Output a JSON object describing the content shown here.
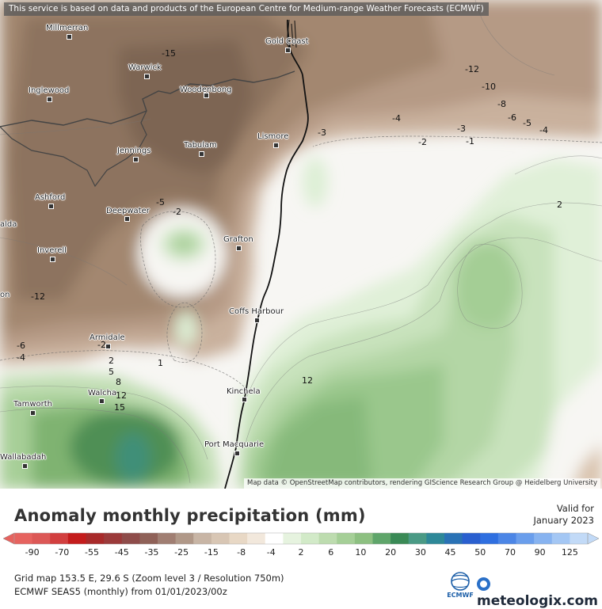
{
  "notice": "This service is based on data and products of the European Centre for Medium-range Weather Forecasts (ECMWF)",
  "attribution": "Map data © OpenStreetMap contributors, rendering GIScience Research Group @ Heidelberg University",
  "cities": [
    {
      "id": "millmerran",
      "name": "Millmerran"
    },
    {
      "id": "gold-coast",
      "name": "Gold Coast"
    },
    {
      "id": "warwick",
      "name": "Warwick"
    },
    {
      "id": "inglewood",
      "name": "Inglewood"
    },
    {
      "id": "woodenbong",
      "name": "Woodenbong"
    },
    {
      "id": "lismore",
      "name": "Lismore"
    },
    {
      "id": "tabulam",
      "name": "Tabulam"
    },
    {
      "id": "jennings",
      "name": "Jennings"
    },
    {
      "id": "ashford",
      "name": "Ashford"
    },
    {
      "id": "deepwater",
      "name": "Deepwater"
    },
    {
      "id": "grafton",
      "name": "Grafton"
    },
    {
      "id": "inverell",
      "name": "Inverell"
    },
    {
      "id": "coffs-harbour",
      "name": "Coffs Harbour"
    },
    {
      "id": "armidale",
      "name": "Armidale"
    },
    {
      "id": "kinchela",
      "name": "Kinchela"
    },
    {
      "id": "walcha",
      "name": "Walcha"
    },
    {
      "id": "tamworth",
      "name": "Tamworth"
    },
    {
      "id": "port-macquarie",
      "name": "Port Macquarie"
    },
    {
      "id": "wallabadah",
      "name": "Wallabadah"
    },
    {
      "id": "partial-alda",
      "name": "alda"
    },
    {
      "id": "partial-on",
      "name": "on"
    }
  ],
  "contour_labels": [
    "-15",
    "-12",
    "-10",
    "-8",
    "-6",
    "-5",
    "-4",
    "-4",
    "-3",
    "-3",
    "-2",
    "-1",
    "2",
    "-5",
    "-2",
    "-12",
    "-6",
    "-4",
    "-2",
    "2",
    "1",
    "5",
    "8",
    "12",
    "15",
    "12"
  ],
  "legend": {
    "title": "Anomaly monthly precipitation (mm)",
    "valid_label": "Valid for",
    "valid_date": "January 2023",
    "ticks": [
      "-90",
      "-70",
      "-55",
      "-45",
      "-35",
      "-25",
      "-15",
      "-8",
      "-4",
      "2",
      "6",
      "10",
      "20",
      "30",
      "45",
      "50",
      "70",
      "90",
      "125"
    ],
    "colors": [
      "#e6635f",
      "#dc5856",
      "#d23f3f",
      "#c41c1c",
      "#a82a2a",
      "#9b3a3a",
      "#8e4c4a",
      "#8f6158",
      "#a07e72",
      "#b09888",
      "#c8b5a5",
      "#d8c6b4",
      "#e8d8c5",
      "#f2e8dc",
      "#ffffff",
      "#e6f3df",
      "#d2eac8",
      "#bddcaf",
      "#a5cf97",
      "#8dc081",
      "#5fa56a",
      "#3a8a56",
      "#4a9a85",
      "#2e8898",
      "#2a72b5",
      "#2a5fcf",
      "#2f6fe0",
      "#4c86e6",
      "#6a9eec",
      "#87b3f0",
      "#a4c7f4",
      "#c2daf7"
    ]
  },
  "footer": {
    "grid_info": "Grid map 153.5 E, 29.6 S (Zoom level 3 / Resolution 750m)",
    "model_info": "ECMWF SEAS5 (monthly) from  01/01/2023/00z",
    "ecmwf_logo": "ECMWF",
    "brand": "meteologix.com"
  }
}
